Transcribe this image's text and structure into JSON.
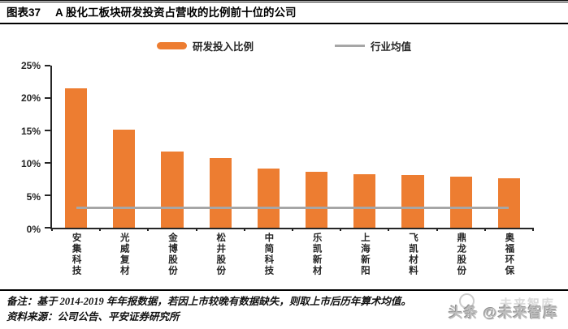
{
  "header": {
    "fig_label": "图表37",
    "title": "A 股化工板块研发投资占营收的比例前十位的公司"
  },
  "legend": {
    "bar_label": "研发投入比例",
    "line_label": "行业均值"
  },
  "chart_data": {
    "type": "bar",
    "title": "A 股化工板块研发投资占营收的比例前十位的公司",
    "categories": [
      "安集科技",
      "光威复材",
      "金博股份",
      "松井股份",
      "中简科技",
      "乐凯新材",
      "上海新阳",
      "飞凯材料",
      "鼎龙股份",
      "奥福环保"
    ],
    "series": [
      {
        "name": "研发投入比例",
        "type": "bar",
        "values": [
          21.5,
          15.1,
          11.8,
          10.8,
          9.1,
          8.6,
          8.2,
          8.1,
          7.9,
          7.6
        ]
      },
      {
        "name": "行业均值",
        "type": "line",
        "constant_value": 3.1
      }
    ],
    "xlabel": "",
    "ylabel": "",
    "unit": "%",
    "ylim": [
      0,
      25
    ],
    "ytick_step": 5,
    "ytick_labels": [
      "0%",
      "5%",
      "10%",
      "15%",
      "20%",
      "25%"
    ],
    "grid": false,
    "legend_position": "top-center",
    "colors": {
      "bar": "#ED7D31",
      "line": "#A6A6A6",
      "axis": "#262626"
    }
  },
  "footer": {
    "note": "备注：基于 2014-2019 年年报数据，若因上市较晚有数据缺失，则取上市后历年算术均值。",
    "source": "资料来源：公司公告、平安证券研究所"
  },
  "watermark": {
    "prefix": "头条",
    "handle": "@未来智库",
    "ghost": "未来智库",
    "full_text": "头条 @未来智库"
  }
}
